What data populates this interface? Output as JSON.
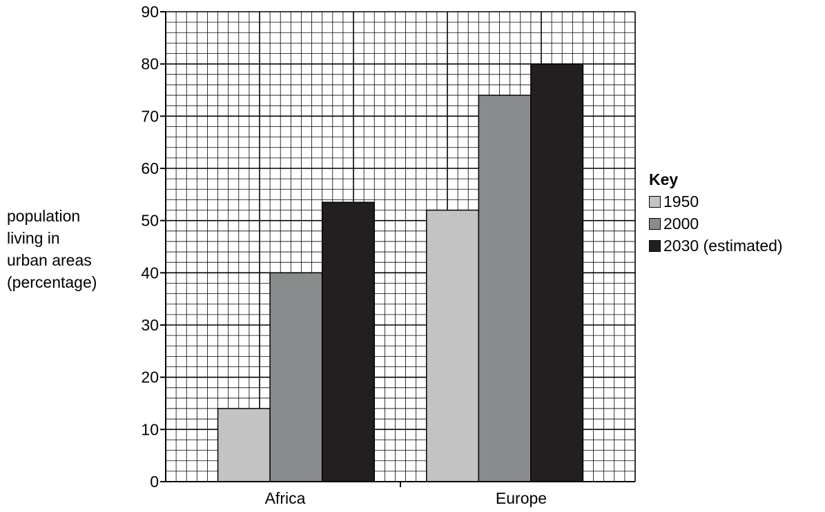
{
  "chart_data": {
    "type": "bar",
    "categories": [
      "Africa",
      "Europe"
    ],
    "series": [
      {
        "name": "1950",
        "values": [
          14,
          52
        ],
        "color": "#c3c3c3"
      },
      {
        "name": "2000",
        "values": [
          40,
          74
        ],
        "color": "#8a8b8c"
      },
      {
        "name": "2030 (estimated)",
        "values": [
          53.5,
          80
        ],
        "color": "#231f20"
      }
    ],
    "ylabel_lines": [
      "population",
      "living in",
      "urban areas",
      "(percentage)"
    ],
    "ylim": [
      0,
      90
    ],
    "yticks": [
      "0",
      "10",
      "20",
      "30",
      "40",
      "50",
      "60",
      "70",
      "80",
      "90"
    ],
    "grid": true,
    "legend": {
      "title": "Key",
      "position": "right"
    }
  }
}
